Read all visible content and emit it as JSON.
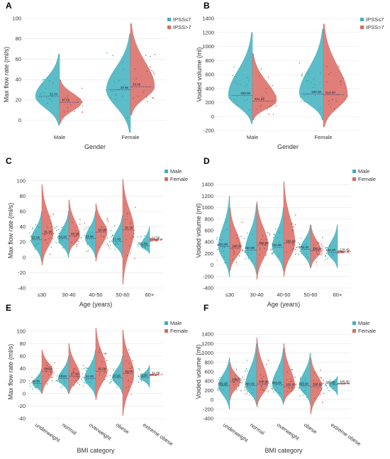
{
  "colors": {
    "teal": "#3fb0be",
    "red": "#d86a62",
    "teal_point": "#1aa89a",
    "red_point": "#b8423a"
  },
  "chart_data": [
    {
      "panel": "A",
      "type": "violin",
      "ylabel": "Max flow rate (ml/s)",
      "xlabel": "Gender",
      "ylim": [
        -10,
        100
      ],
      "yticks": [
        0,
        20,
        40,
        60,
        80,
        100
      ],
      "categories": [
        "Male",
        "Female"
      ],
      "legend": [
        "IPSS≤7",
        "IPSS>7"
      ],
      "legend_position": "top-right",
      "groups": [
        {
          "category": "Male",
          "series": "IPSS≤7",
          "median": 23.5,
          "min": -5,
          "max": 65,
          "label": "23.70"
        },
        {
          "category": "Male",
          "series": "IPSS>7",
          "median": 17.7,
          "min": -3,
          "max": 40,
          "label": "17.65"
        },
        {
          "category": "Female",
          "series": "IPSS≤7",
          "median": 30,
          "min": -12,
          "max": 85,
          "label": "29.95"
        },
        {
          "category": "Female",
          "series": "IPSS>7",
          "median": 33,
          "min": 5,
          "max": 95,
          "label": "33.65"
        }
      ]
    },
    {
      "panel": "B",
      "type": "violin",
      "ylabel": "Voided volume (ml)",
      "xlabel": "Gender",
      "ylim": [
        -200,
        1400
      ],
      "yticks": [
        -200,
        0,
        200,
        400,
        600,
        800,
        1000,
        1200,
        1400
      ],
      "categories": [
        "Male",
        "Female"
      ],
      "legend": [
        "IPSS≤7",
        "IPSS>7"
      ],
      "legend_position": "top-right",
      "groups": [
        {
          "category": "Male",
          "series": "IPSS≤7",
          "median": 300,
          "min": -100,
          "max": 1200,
          "label": "300.00"
        },
        {
          "category": "Male",
          "series": "IPSS>7",
          "median": 220,
          "min": -50,
          "max": 900,
          "label": "221.62"
        },
        {
          "category": "Female",
          "series": "IPSS≤7",
          "median": 320,
          "min": -50,
          "max": 1250,
          "label": "320.00"
        },
        {
          "category": "Female",
          "series": "IPSS>7",
          "median": 310,
          "min": -150,
          "max": 1320,
          "label": "314.00"
        }
      ]
    },
    {
      "panel": "C",
      "type": "violin",
      "ylabel": "Max flow rate (ml/s)",
      "xlabel": "Age (years)",
      "ylim": [
        -40,
        110
      ],
      "yticks": [
        -40,
        -20,
        0,
        20,
        40,
        60,
        80,
        100
      ],
      "categories": [
        "≤30",
        "30-40",
        "40-50",
        "50-60",
        "60+"
      ],
      "legend": [
        "Male",
        "Female"
      ],
      "legend_position": "top-right",
      "groups": [
        {
          "category": "≤30",
          "series": "Male",
          "median": 23,
          "min": -5,
          "max": 60,
          "label": "23.05"
        },
        {
          "category": "≤30",
          "series": "Female",
          "median": 31,
          "min": -10,
          "max": 95,
          "label": "31.30"
        },
        {
          "category": "30-40",
          "series": "Male",
          "median": 24,
          "min": 0,
          "max": 60,
          "label": "24.00"
        },
        {
          "category": "30-40",
          "series": "Female",
          "median": 28,
          "min": 5,
          "max": 75,
          "label": "28.30"
        },
        {
          "category": "40-50",
          "series": "Male",
          "median": 24.5,
          "min": 0,
          "max": 60,
          "label": "24.50"
        },
        {
          "category": "40-50",
          "series": "Female",
          "median": 33,
          "min": -5,
          "max": 70,
          "label": "33.00"
        },
        {
          "category": "50-60",
          "series": "Male",
          "median": 21,
          "min": 0,
          "max": 55,
          "label": "21.00"
        },
        {
          "category": "50-60",
          "series": "Female",
          "median": 36,
          "min": -35,
          "max": 102,
          "label": "35.70"
        },
        {
          "category": "60+",
          "series": "Male",
          "median": 15,
          "min": 5,
          "max": 40,
          "label": "15.00"
        },
        {
          "category": "60+",
          "series": "Female",
          "median": 23,
          "min": 20,
          "max": 26,
          "label": "22.50"
        }
      ]
    },
    {
      "panel": "D",
      "type": "violin",
      "ylabel": "Voided volume (ml)",
      "xlabel": "Age (years)",
      "ylim": [
        -400,
        1600
      ],
      "yticks": [
        -400,
        -200,
        0,
        200,
        400,
        600,
        800,
        1000,
        1200,
        1400
      ],
      "categories": [
        "≤30",
        "30-40",
        "40-50",
        "50-60",
        "60+"
      ],
      "legend": [
        "Male",
        "Female"
      ],
      "legend_position": "top-right",
      "groups": [
        {
          "category": "≤30",
          "series": "Male",
          "median": 320,
          "min": -200,
          "max": 1200,
          "label": "320.00"
        },
        {
          "category": "≤30",
          "series": "Female",
          "median": 290,
          "min": -100,
          "max": 1000,
          "label": "290.00"
        },
        {
          "category": "30-40",
          "series": "Male",
          "median": 260,
          "min": -150,
          "max": 1050,
          "label": "260.00"
        },
        {
          "category": "30-40",
          "series": "Female",
          "median": 350,
          "min": -250,
          "max": 1100,
          "label": "350.00"
        },
        {
          "category": "40-50",
          "series": "Male",
          "median": 310,
          "min": -100,
          "max": 1000,
          "label": "310.00"
        },
        {
          "category": "40-50",
          "series": "Female",
          "median": 380,
          "min": -200,
          "max": 1450,
          "label": "380.00"
        },
        {
          "category": "50-60",
          "series": "Male",
          "median": 275,
          "min": -50,
          "max": 700,
          "label": "275.10"
        },
        {
          "category": "50-60",
          "series": "Female",
          "median": 250,
          "min": -50,
          "max": 700,
          "label": "250.00"
        },
        {
          "category": "60+",
          "series": "Male",
          "median": 226,
          "min": -50,
          "max": 700,
          "label": "226.00"
        },
        {
          "category": "60+",
          "series": "Female",
          "median": 229,
          "min": 200,
          "max": 260,
          "label": "229.45"
        }
      ]
    },
    {
      "panel": "E",
      "type": "violin",
      "ylabel": "Max flow rate (ml/s)",
      "xlabel": "BMI category",
      "ylim": [
        -40,
        110
      ],
      "yticks": [
        -40,
        -20,
        0,
        20,
        40,
        60,
        80,
        100
      ],
      "categories": [
        "underweight",
        "normal",
        "overweight",
        "obese",
        "extreme obese"
      ],
      "legend": [
        "Male",
        "Female"
      ],
      "legend_position": "top-right",
      "groups": [
        {
          "category": "underweight",
          "series": "Male",
          "median": 16,
          "min": 0,
          "max": 40,
          "label": "15.70"
        },
        {
          "category": "underweight",
          "series": "Female",
          "median": 36,
          "min": 0,
          "max": 70,
          "label": "35.60"
        },
        {
          "category": "normal",
          "series": "Male",
          "median": 24,
          "min": 0,
          "max": 60,
          "label": "24.00"
        },
        {
          "category": "normal",
          "series": "Female",
          "median": 28,
          "min": 0,
          "max": 80,
          "label": "27.90"
        },
        {
          "category": "overweight",
          "series": "Male",
          "median": 24,
          "min": -5,
          "max": 70,
          "label": "24.00"
        },
        {
          "category": "overweight",
          "series": "Female",
          "median": 36,
          "min": -10,
          "max": 105,
          "label": "36.00"
        },
        {
          "category": "obese",
          "series": "Male",
          "median": 25,
          "min": 0,
          "max": 60,
          "label": "25.00"
        },
        {
          "category": "obese",
          "series": "Female",
          "median": 32,
          "min": -35,
          "max": 102,
          "label": "32.00"
        },
        {
          "category": "extreme obese",
          "series": "Male",
          "median": 26,
          "min": 10,
          "max": 45,
          "label": "26.00"
        },
        {
          "category": "extreme obese",
          "series": "Female",
          "median": 30,
          "min": 28,
          "max": 32,
          "label": "31.05"
        }
      ]
    },
    {
      "panel": "F",
      "type": "violin",
      "ylabel": "Voided volume (ml)",
      "xlabel": "BMI category",
      "ylim": [
        -400,
        1600
      ],
      "yticks": [
        -400,
        -200,
        0,
        200,
        400,
        600,
        800,
        1000,
        1200,
        1400
      ],
      "categories": [
        "underweight",
        "normal",
        "overweight",
        "obese",
        "extreme obese"
      ],
      "legend": [
        "Male",
        "Female"
      ],
      "legend_position": "top-right",
      "groups": [
        {
          "category": "underweight",
          "series": "Male",
          "median": 300,
          "min": -200,
          "max": 900,
          "label": "300.00"
        },
        {
          "category": "underweight",
          "series": "Female",
          "median": 388,
          "min": 0,
          "max": 800,
          "label": "388.75"
        },
        {
          "category": "normal",
          "series": "Male",
          "median": 300,
          "min": -100,
          "max": 1200,
          "label": "300.00"
        },
        {
          "category": "normal",
          "series": "Female",
          "median": 340,
          "min": -150,
          "max": 1320,
          "label": "340.00"
        },
        {
          "category": "overweight",
          "series": "Male",
          "median": 320,
          "min": -100,
          "max": 1100,
          "label": "320.00"
        },
        {
          "category": "overweight",
          "series": "Female",
          "median": 280,
          "min": -50,
          "max": 1200,
          "label": "280.00"
        },
        {
          "category": "obese",
          "series": "Male",
          "median": 300,
          "min": -100,
          "max": 1000,
          "label": "300.00"
        },
        {
          "category": "obese",
          "series": "Female",
          "median": 280,
          "min": -300,
          "max": 900,
          "label": "280.00"
        },
        {
          "category": "extreme obese",
          "series": "Male",
          "median": 325,
          "min": 100,
          "max": 500,
          "label": "325.00"
        },
        {
          "category": "extreme obese",
          "series": "Female",
          "median": 345,
          "min": 330,
          "max": 360,
          "label": "345.00"
        }
      ]
    }
  ]
}
